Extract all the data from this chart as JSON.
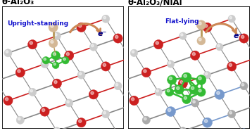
{
  "left_title": "θ-Al₂O₃",
  "right_title": "θ-Al₂O₃/NiAl",
  "left_label": "Upright-standing",
  "right_label": "Flat-lying",
  "electron_label": "e⁻",
  "fig_width": 3.58,
  "fig_height": 1.89,
  "dpi": 100,
  "bg_color": "#ffffff",
  "au_color": "#d4b896",
  "au_bond_color": "#b8995a",
  "o_color": "#cc2020",
  "al_color": "#cccccc",
  "al_dark_color": "#aaaaaa",
  "ni_color": "#7799cc",
  "ni_dark_color": "#5577aa",
  "au_surface_color": "#33bb33",
  "arrow_color": "#cc8855",
  "left_label_color": "#1111cc",
  "right_label_color": "#1111cc",
  "electron_color": "#000088",
  "bond_color": "#888888",
  "red_bond_color": "#cc4444",
  "blue_bond_color": "#6688bb"
}
